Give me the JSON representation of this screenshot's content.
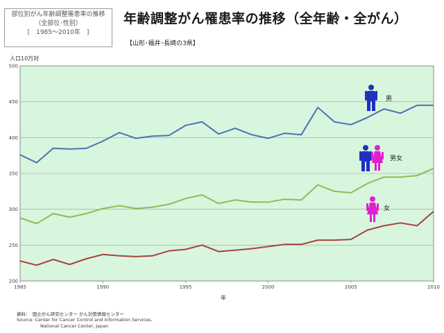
{
  "header": {
    "box_lines": [
      "部位別がん年齢調整罹患率の推移",
      "（全部位･性別）",
      "[　1985～2010年　]"
    ],
    "title": "年齢調整がん罹患率の推移（全年齢・全がん）",
    "subtitle": "【山形･福井･長崎の3県】"
  },
  "source": {
    "line1": "資料：　国立がん研究センター がん対策情報センター",
    "line2": "Source: Center for Cancer Control and Information Services,",
    "line3": "National Cancer Center, Japan"
  },
  "chart_data": {
    "type": "line",
    "title": "年齢調整がん罹患率の推移（全年齢・全がん）",
    "xlabel": "年",
    "ylabel": "人口10万対",
    "xlim": [
      1985,
      2010
    ],
    "ylim": [
      200,
      500
    ],
    "x_ticks": [
      1985,
      1990,
      1995,
      2000,
      2005,
      2010
    ],
    "y_ticks": [
      200,
      250,
      300,
      350,
      400,
      450,
      500
    ],
    "grid": true,
    "background": "#d8f5de",
    "x": [
      1985,
      1986,
      1987,
      1988,
      1989,
      1990,
      1991,
      1992,
      1993,
      1994,
      1995,
      1996,
      1997,
      1998,
      1999,
      2000,
      2001,
      2002,
      2003,
      2004,
      2005,
      2006,
      2007,
      2008,
      2009,
      2010
    ],
    "series": [
      {
        "name": "男",
        "color": "#4a72b0",
        "icon_color": "#1f2fbf",
        "values": [
          376,
          365,
          385,
          384,
          385,
          395,
          407,
          399,
          402,
          403,
          417,
          422,
          405,
          413,
          404,
          399,
          406,
          404,
          442,
          422,
          418,
          428,
          440,
          434,
          445,
          445
        ]
      },
      {
        "name": "男女",
        "color": "#93b858",
        "icon_color": "#1f2fbf",
        "values": [
          288,
          280,
          294,
          289,
          294,
          301,
          305,
          301,
          303,
          307,
          315,
          320,
          308,
          313,
          310,
          310,
          314,
          313,
          334,
          325,
          323,
          336,
          345,
          345,
          347,
          357
        ]
      },
      {
        "name": "女",
        "color": "#a8403c",
        "icon_color": "#e01fd0",
        "values": [
          228,
          222,
          230,
          223,
          231,
          237,
          235,
          234,
          235,
          242,
          244,
          250,
          241,
          243,
          245,
          248,
          251,
          251,
          257,
          257,
          258,
          271,
          277,
          281,
          277,
          297
        ]
      }
    ]
  }
}
